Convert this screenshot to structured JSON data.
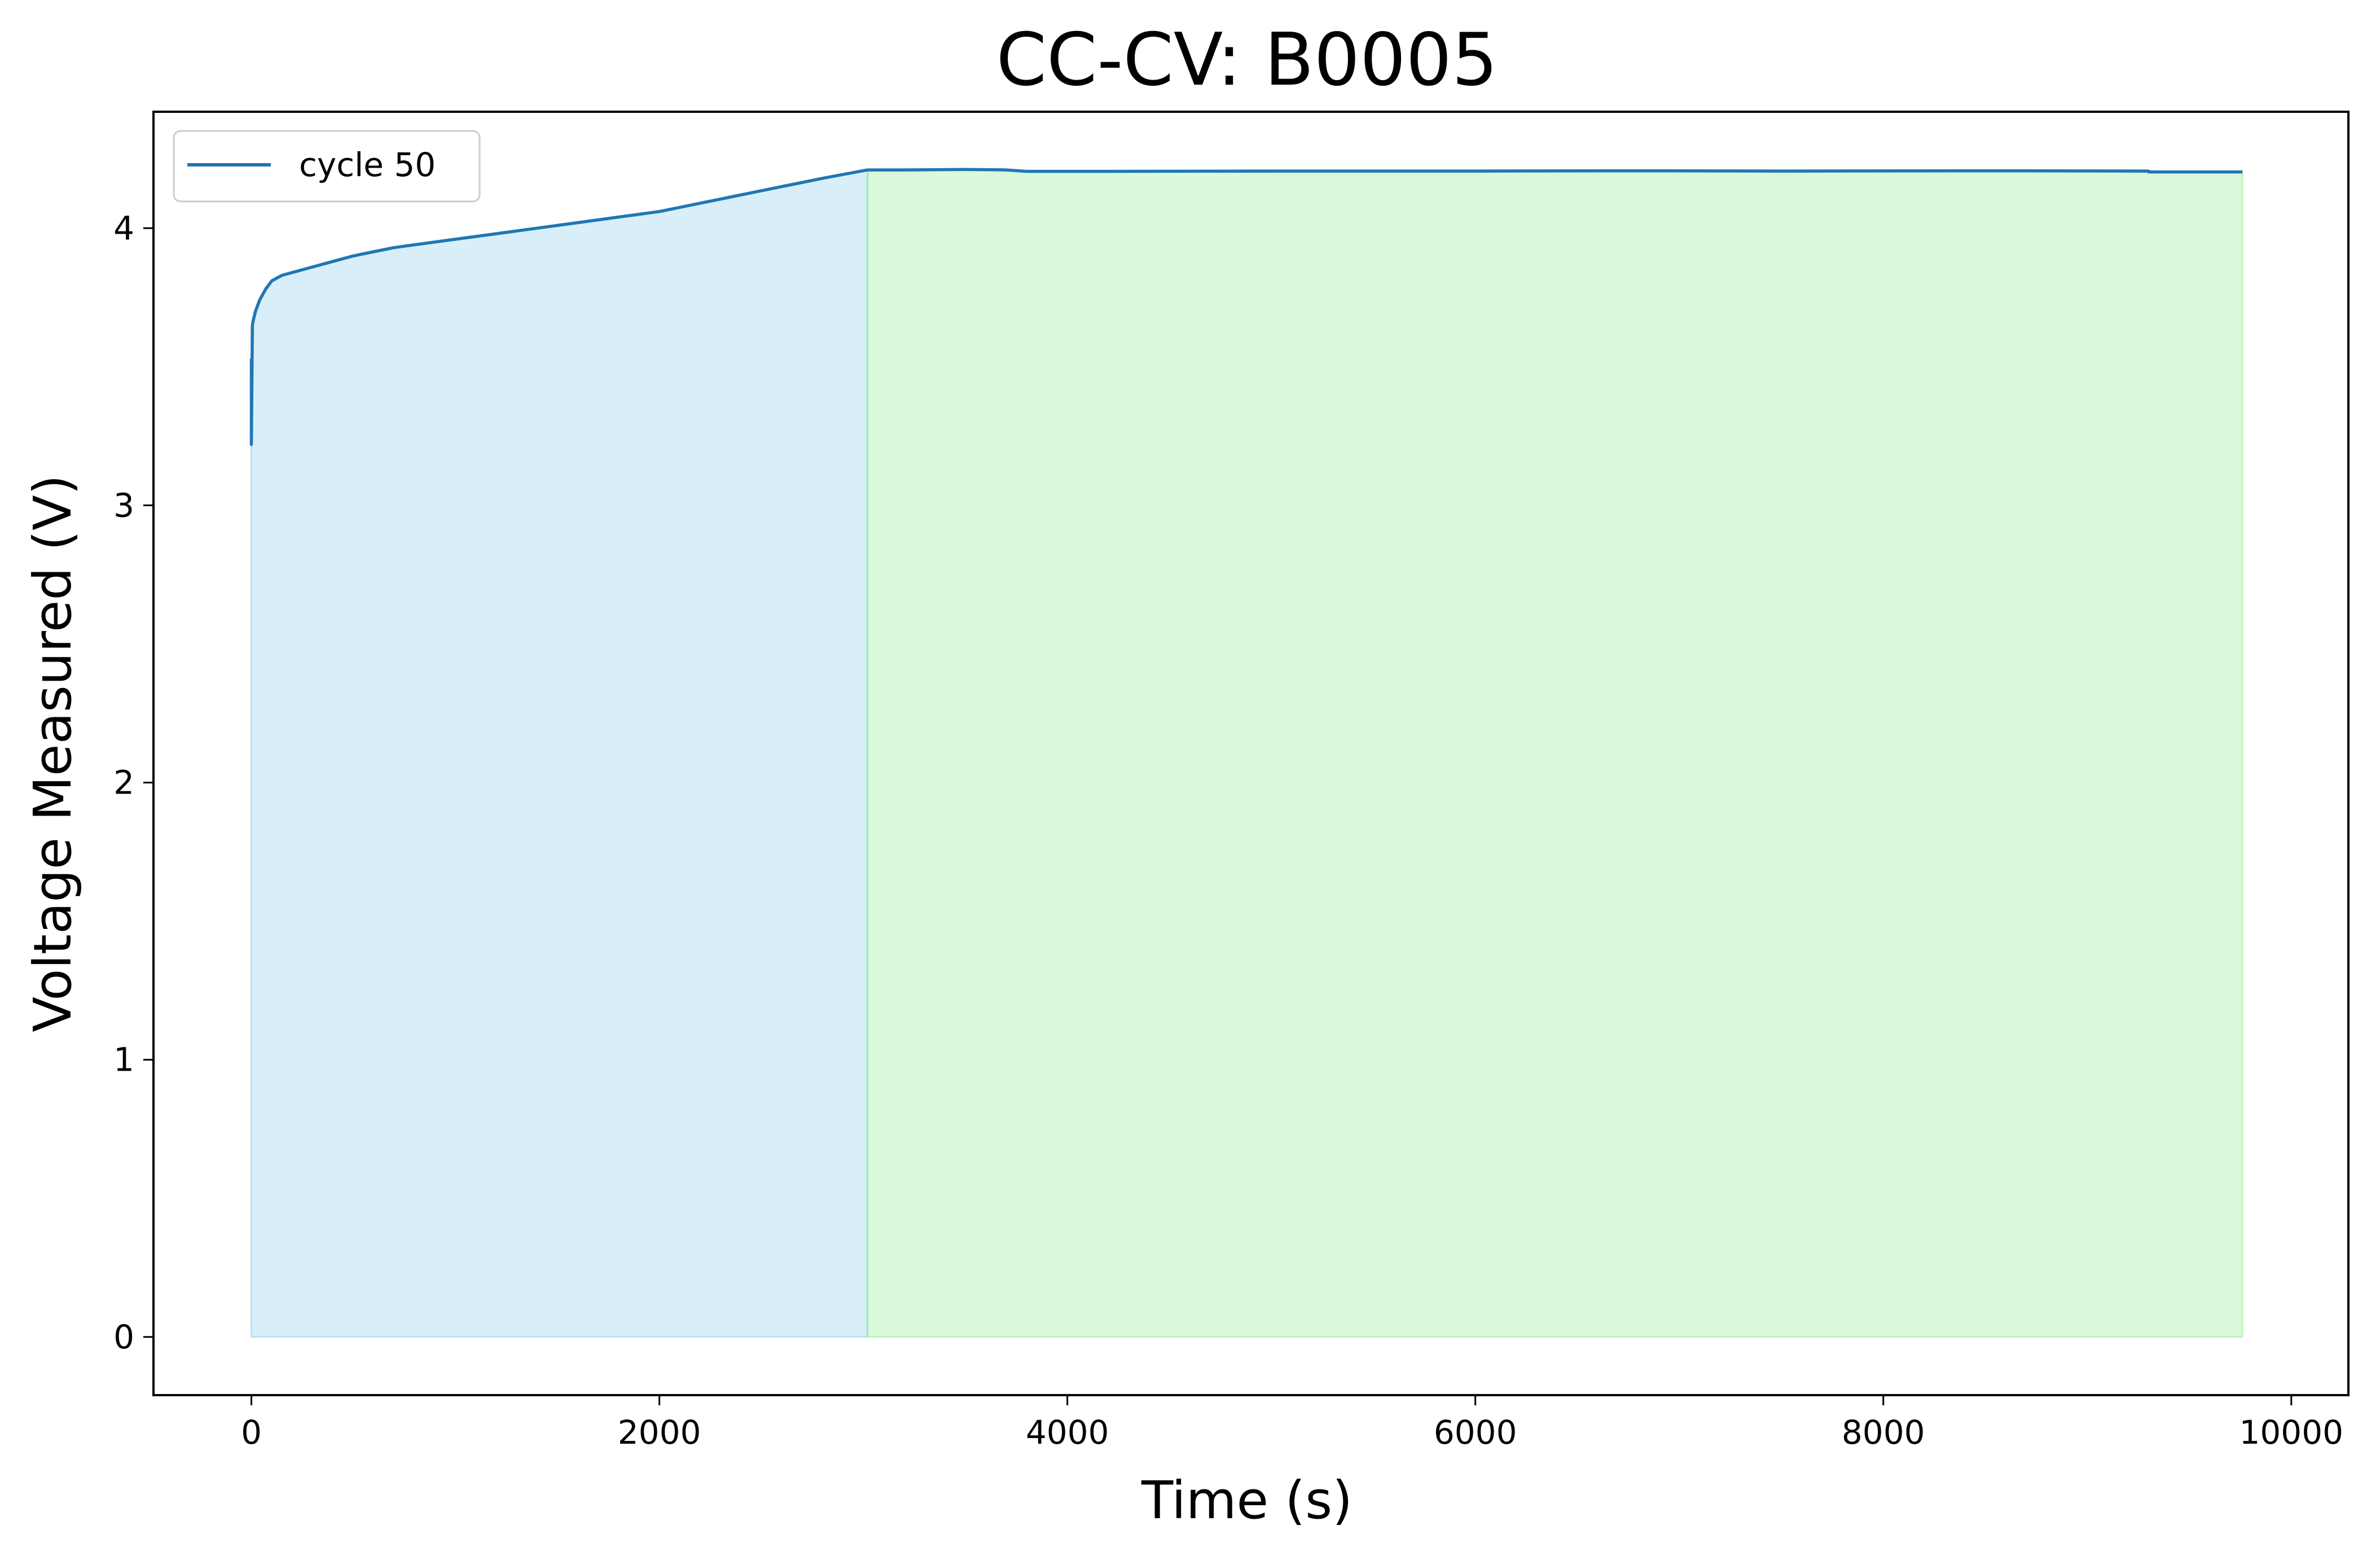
{
  "chart_data": {
    "type": "area",
    "title": "CC-CV: B0005",
    "xlabel": "Time (s)",
    "ylabel": "Voltage Measured (V)",
    "xlim": [
      -480,
      10280
    ],
    "ylim": [
      -0.21,
      4.42
    ],
    "xticks": [
      0,
      2000,
      4000,
      6000,
      8000,
      10000
    ],
    "yticks": [
      0,
      1,
      2,
      3,
      4
    ],
    "grid": false,
    "legend": {
      "location": "upper left",
      "entries": [
        "cycle 50"
      ]
    },
    "series": [
      {
        "name": "cycle 50",
        "color": "#1f77b4",
        "x": [
          0,
          0,
          5,
          10,
          20,
          40,
          70,
          100,
          150,
          200,
          300,
          400,
          500,
          600,
          700,
          800,
          1000,
          1200,
          1400,
          1600,
          1800,
          2000,
          2200,
          2400,
          2600,
          2800,
          3020,
          3020,
          3200,
          3500,
          3700,
          3800,
          4200,
          5000,
          6000,
          6800,
          7500,
          8500,
          9300,
          9300,
          9760
        ],
        "y": [
          3.53,
          3.22,
          3.65,
          3.67,
          3.7,
          3.74,
          3.78,
          3.81,
          3.83,
          3.84,
          3.86,
          3.88,
          3.9,
          3.915,
          3.93,
          3.94,
          3.96,
          3.98,
          4.0,
          4.02,
          4.04,
          4.06,
          4.09,
          4.12,
          4.15,
          4.18,
          4.21,
          4.21,
          4.21,
          4.212,
          4.21,
          4.205,
          4.205,
          4.206,
          4.206,
          4.207,
          4.206,
          4.207,
          4.206,
          4.203,
          4.203
        ]
      }
    ],
    "shaded_regions": [
      {
        "phase": "CC",
        "x": [
          0,
          3020
        ],
        "color": "#87ceeb",
        "opacity": 0.32
      },
      {
        "phase": "CV",
        "x": [
          3020,
          9760
        ],
        "color": "#90ee90",
        "opacity": 0.32
      }
    ]
  }
}
